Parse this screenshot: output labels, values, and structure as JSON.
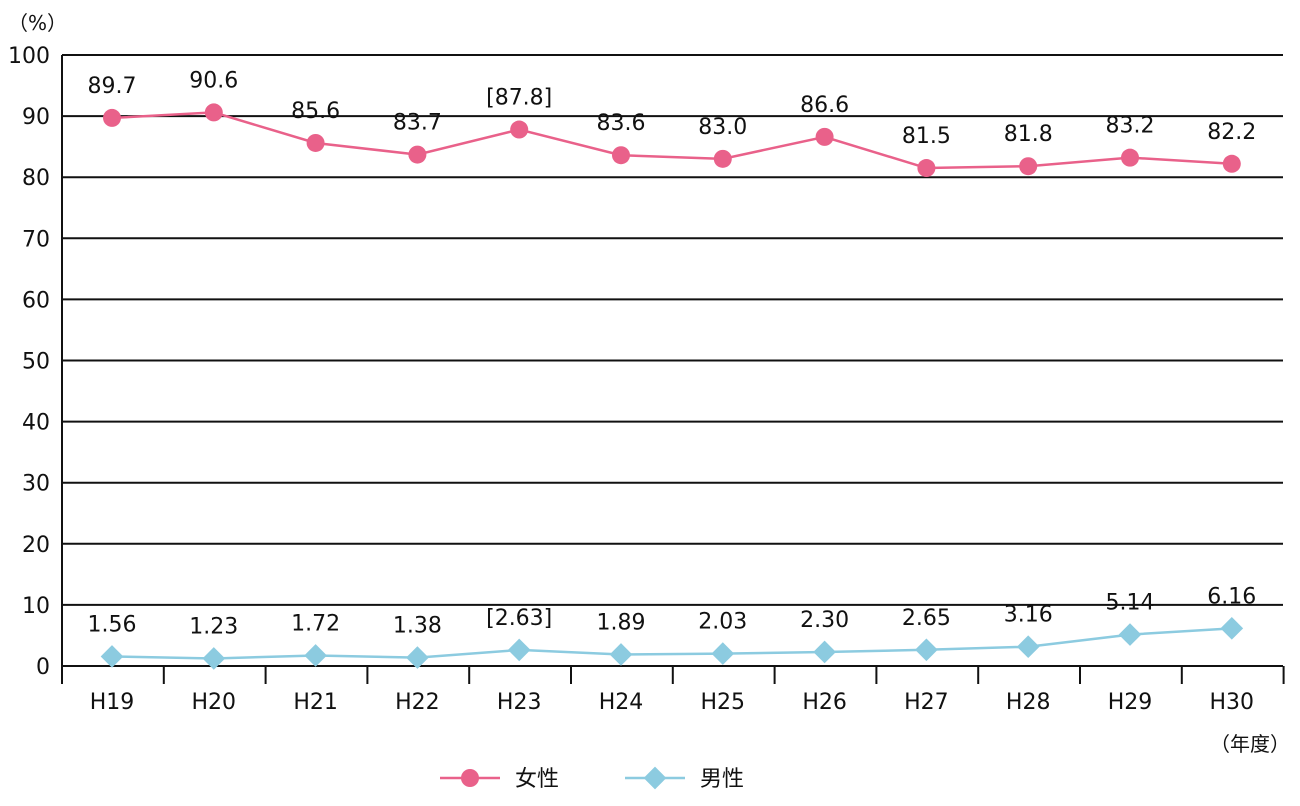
{
  "chart_data": {
    "type": "line",
    "ylabel": "（%）",
    "xlabel": "（年度）",
    "ylim": [
      0,
      100
    ],
    "yticks": [
      "0",
      "10",
      "20",
      "30",
      "40",
      "50",
      "60",
      "70",
      "80",
      "90",
      "100"
    ],
    "categories": [
      "H19",
      "H20",
      "H21",
      "H22",
      "H23",
      "H24",
      "H25",
      "H26",
      "H27",
      "H28",
      "H29",
      "H30"
    ],
    "grid": true,
    "legend_position": "bottom",
    "series": [
      {
        "name": "女性",
        "color": "#e9618a",
        "marker": "circle",
        "values": [
          89.7,
          90.6,
          85.6,
          83.7,
          87.8,
          83.6,
          83.0,
          86.6,
          81.5,
          81.8,
          83.2,
          82.2
        ],
        "labels": [
          "89.7",
          "90.6",
          "85.6",
          "83.7",
          "[87.8]",
          "83.6",
          "83.0",
          "86.6",
          "81.5",
          "81.8",
          "83.2",
          "82.2"
        ]
      },
      {
        "name": "男性",
        "color": "#8ccbe0",
        "marker": "diamond",
        "values": [
          1.56,
          1.23,
          1.72,
          1.38,
          2.63,
          1.89,
          2.03,
          2.3,
          2.65,
          3.16,
          5.14,
          6.16
        ],
        "labels": [
          "1.56",
          "1.23",
          "1.72",
          "1.38",
          "[2.63]",
          "1.89",
          "2.03",
          "2.30",
          "2.65",
          "3.16",
          "5.14",
          "6.16"
        ]
      }
    ]
  }
}
